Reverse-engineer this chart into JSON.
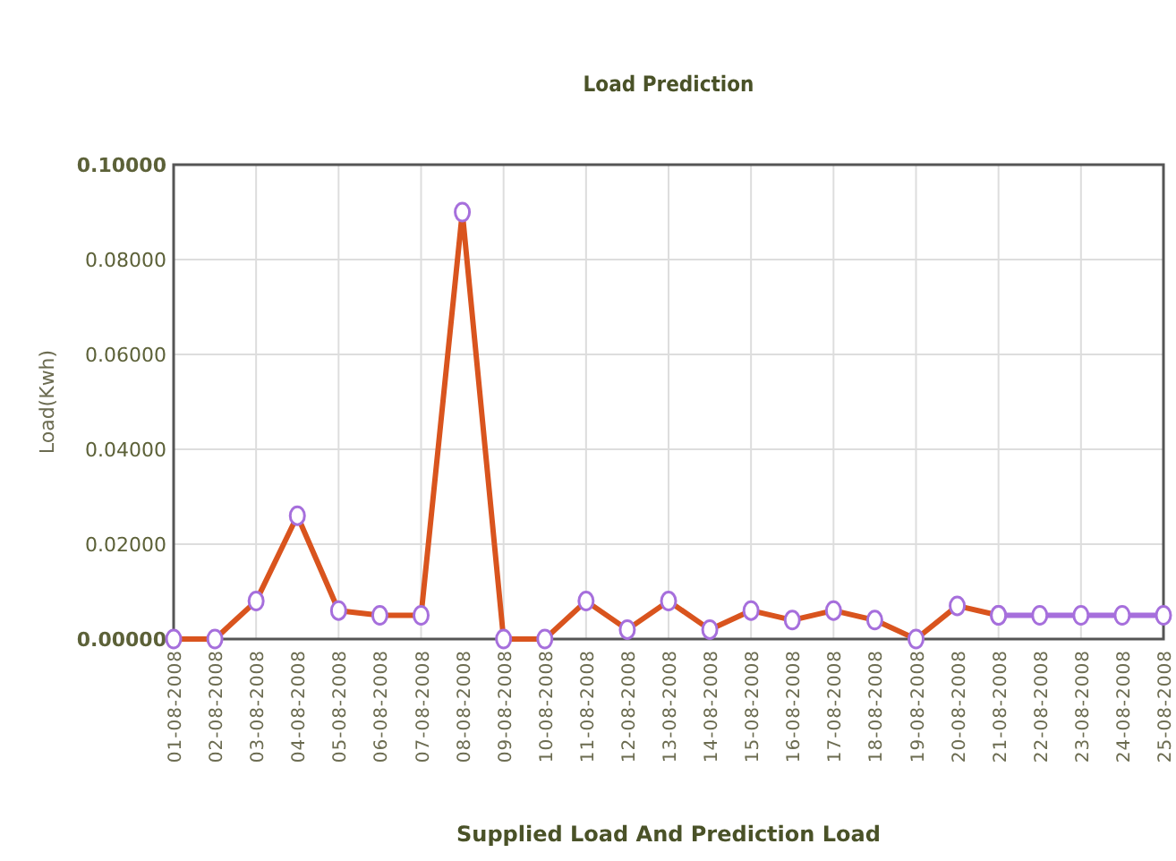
{
  "chart_data": {
    "type": "line",
    "title": "Load Prediction",
    "xlabel": "Supplied Load And Prediction Load",
    "ylabel": "Load(Kwh)",
    "categories": [
      "01-08-2008",
      "02-08-2008",
      "03-08-2008",
      "04-08-2008",
      "05-08-2008",
      "06-08-2008",
      "07-08-2008",
      "08-08-2008",
      "09-08-2008",
      "10-08-2008",
      "11-08-2008",
      "12-08-2008",
      "13-08-2008",
      "14-08-2008",
      "15-08-2008",
      "16-08-2008",
      "17-08-2008",
      "18-08-2008",
      "19-08-2008",
      "20-08-2008",
      "21-08-2008",
      "22-08-2008",
      "23-08-2008",
      "24-08-2008",
      "25-08-2008"
    ],
    "series": [
      {
        "color": "#d9541e",
        "values": [
          0,
          0,
          0.008,
          0.026,
          0.006,
          0.005,
          0.005,
          0.09,
          0,
          0,
          0.008,
          0.002,
          0.008,
          0.002,
          0.006,
          0.004,
          0.006,
          0.004,
          0,
          0.007,
          0.005,
          null,
          null,
          null,
          null
        ]
      },
      {
        "color": "#a66fdc",
        "values": [
          null,
          null,
          null,
          null,
          null,
          null,
          null,
          null,
          null,
          null,
          null,
          null,
          null,
          null,
          null,
          null,
          null,
          null,
          null,
          null,
          0.005,
          0.005,
          0.005,
          0.005,
          0.005
        ]
      }
    ],
    "ylim": [
      0,
      0.1
    ],
    "yticks": [
      {
        "value": 0,
        "label": "0.00000"
      },
      {
        "value": 0.02,
        "label": "0.02000"
      },
      {
        "value": 0.04,
        "label": "0.04000"
      },
      {
        "value": 0.06,
        "label": "0.06000"
      },
      {
        "value": 0.08,
        "label": "0.08000"
      },
      {
        "value": 0.1,
        "label": "0.10000"
      }
    ],
    "grid": true,
    "marker": "circle",
    "line_style": "solid"
  }
}
